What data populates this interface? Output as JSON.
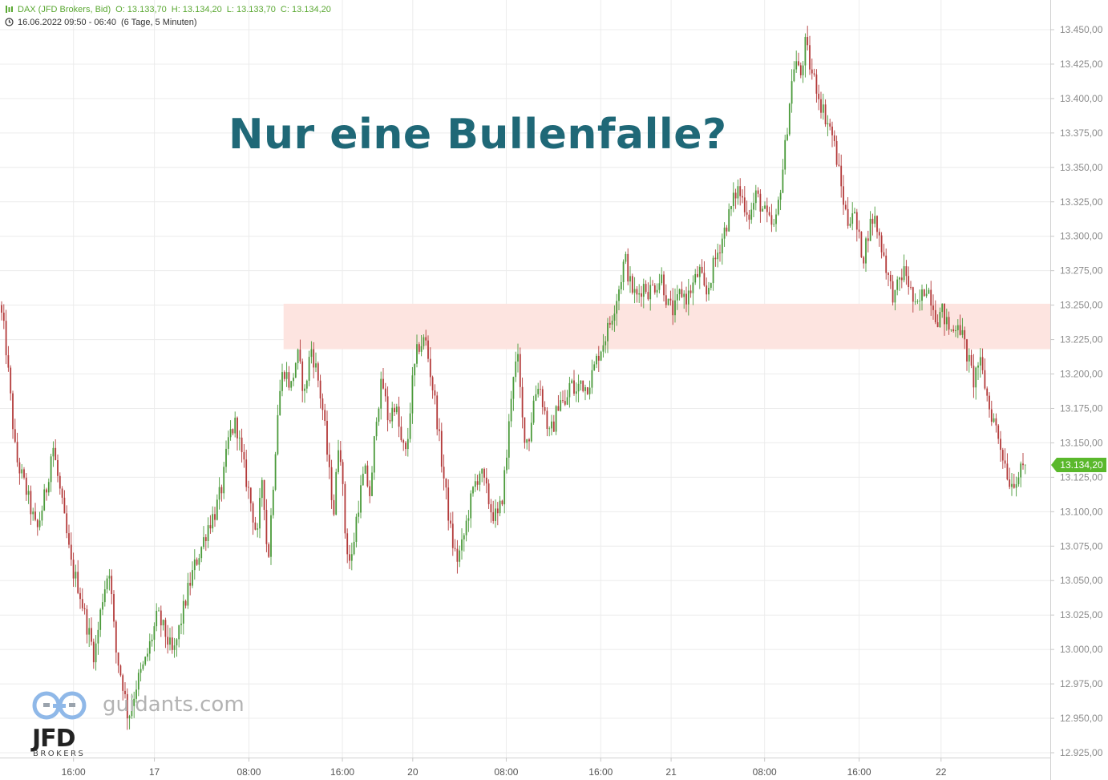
{
  "header": {
    "instrument": "DAX (JFD Brokers, Bid)",
    "open": "O: 13.133,70",
    "high": "H: 13.134,20",
    "low": "L: 13.133,70",
    "close": "C: 13.134,20",
    "range": "16.06.2022 09:50 - 06:40",
    "period": "(6 Tage, 5 Minuten)"
  },
  "overlay_title": "Nur eine Bullenfalle?",
  "watermark": {
    "site": "guidants.com",
    "brand": "JFD",
    "brand_sub": "BROKERS"
  },
  "last_price": "13.134,20",
  "colors": {
    "up": "#4a9a3a",
    "down": "#b33a3a",
    "zone": "#fde4e0",
    "title": "#1f6877",
    "price_tag": "#5ab82c"
  },
  "chart_data": {
    "type": "candlestick",
    "title": "",
    "timeframe": "5 Minuten",
    "ylim": [
      12915,
      13465
    ],
    "y_ticks": [
      "13.450,00",
      "13.425,00",
      "13.400,00",
      "13.375,00",
      "13.350,00",
      "13.325,00",
      "13.300,00",
      "13.275,00",
      "13.250,00",
      "13.225,00",
      "13.200,00",
      "13.175,00",
      "13.150,00",
      "13.125,00",
      "13.100,00",
      "13.075,00",
      "13.050,00",
      "13.025,00",
      "13.000,00",
      "12.975,00",
      "12.950,00",
      "12.925,00"
    ],
    "y_tick_values": [
      13450,
      13425,
      13400,
      13375,
      13350,
      13325,
      13300,
      13275,
      13250,
      13225,
      13200,
      13175,
      13150,
      13125,
      13100,
      13075,
      13050,
      13025,
      13000,
      12975,
      12950,
      12925
    ],
    "x_ticks": [
      {
        "label": "16:00",
        "pos": 0.07
      },
      {
        "label": "17",
        "pos": 0.147
      },
      {
        "label": "08:00",
        "pos": 0.237
      },
      {
        "label": "16:00",
        "pos": 0.326
      },
      {
        "label": "20",
        "pos": 0.393
      },
      {
        "label": "08:00",
        "pos": 0.482
      },
      {
        "label": "16:00",
        "pos": 0.572
      },
      {
        "label": "21",
        "pos": 0.639
      },
      {
        "label": "08:00",
        "pos": 0.728
      },
      {
        "label": "16:00",
        "pos": 0.818
      },
      {
        "label": "22",
        "pos": 0.896
      }
    ],
    "zone": {
      "from": 13218,
      "to": 13251,
      "start_pos": 0.27
    },
    "last_value": 13134.2,
    "path": [
      [
        0.0,
        13250
      ],
      [
        0.005,
        13225
      ],
      [
        0.015,
        13140
      ],
      [
        0.025,
        13115
      ],
      [
        0.035,
        13085
      ],
      [
        0.045,
        13120
      ],
      [
        0.05,
        13150
      ],
      [
        0.06,
        13100
      ],
      [
        0.068,
        13060
      ],
      [
        0.075,
        13045
      ],
      [
        0.082,
        13020
      ],
      [
        0.09,
        12995
      ],
      [
        0.098,
        13040
      ],
      [
        0.104,
        13060
      ],
      [
        0.11,
        13000
      ],
      [
        0.117,
        12975
      ],
      [
        0.122,
        12950
      ],
      [
        0.13,
        12975
      ],
      [
        0.138,
        12990
      ],
      [
        0.145,
        13010
      ],
      [
        0.15,
        13025
      ],
      [
        0.158,
        13010
      ],
      [
        0.165,
        12995
      ],
      [
        0.172,
        13020
      ],
      [
        0.178,
        13040
      ],
      [
        0.185,
        13060
      ],
      [
        0.192,
        13075
      ],
      [
        0.198,
        13090
      ],
      [
        0.205,
        13100
      ],
      [
        0.212,
        13120
      ],
      [
        0.218,
        13155
      ],
      [
        0.225,
        13165
      ],
      [
        0.23,
        13140
      ],
      [
        0.238,
        13110
      ],
      [
        0.245,
        13080
      ],
      [
        0.25,
        13130
      ],
      [
        0.255,
        13060
      ],
      [
        0.26,
        13120
      ],
      [
        0.265,
        13180
      ],
      [
        0.27,
        13205
      ],
      [
        0.277,
        13190
      ],
      [
        0.283,
        13215
      ],
      [
        0.29,
        13185
      ],
      [
        0.296,
        13220
      ],
      [
        0.302,
        13200
      ],
      [
        0.308,
        13170
      ],
      [
        0.313,
        13130
      ],
      [
        0.318,
        13100
      ],
      [
        0.323,
        13160
      ],
      [
        0.329,
        13080
      ],
      [
        0.334,
        13060
      ],
      [
        0.34,
        13100
      ],
      [
        0.347,
        13130
      ],
      [
        0.353,
        13110
      ],
      [
        0.358,
        13170
      ],
      [
        0.364,
        13195
      ],
      [
        0.37,
        13165
      ],
      [
        0.376,
        13180
      ],
      [
        0.382,
        13150
      ],
      [
        0.387,
        13140
      ],
      [
        0.392,
        13190
      ],
      [
        0.398,
        13220
      ],
      [
        0.405,
        13225
      ],
      [
        0.41,
        13200
      ],
      [
        0.415,
        13175
      ],
      [
        0.42,
        13140
      ],
      [
        0.425,
        13110
      ],
      [
        0.43,
        13080
      ],
      [
        0.435,
        13065
      ],
      [
        0.44,
        13075
      ],
      [
        0.446,
        13100
      ],
      [
        0.452,
        13120
      ],
      [
        0.457,
        13130
      ],
      [
        0.463,
        13115
      ],
      [
        0.468,
        13100
      ],
      [
        0.474,
        13095
      ],
      [
        0.478,
        13110
      ],
      [
        0.483,
        13145
      ],
      [
        0.488,
        13200
      ],
      [
        0.493,
        13210
      ],
      [
        0.498,
        13160
      ],
      [
        0.503,
        13150
      ],
      [
        0.508,
        13180
      ],
      [
        0.513,
        13195
      ],
      [
        0.518,
        13175
      ],
      [
        0.523,
        13155
      ],
      [
        0.528,
        13165
      ],
      [
        0.533,
        13185
      ],
      [
        0.538,
        13175
      ],
      [
        0.543,
        13195
      ],
      [
        0.548,
        13185
      ],
      [
        0.553,
        13195
      ],
      [
        0.558,
        13190
      ],
      [
        0.564,
        13200
      ],
      [
        0.57,
        13215
      ],
      [
        0.575,
        13225
      ],
      [
        0.58,
        13235
      ],
      [
        0.585,
        13250
      ],
      [
        0.59,
        13265
      ],
      [
        0.595,
        13285
      ],
      [
        0.6,
        13265
      ],
      [
        0.606,
        13255
      ],
      [
        0.612,
        13265
      ],
      [
        0.618,
        13260
      ],
      [
        0.624,
        13265
      ],
      [
        0.63,
        13270
      ],
      [
        0.636,
        13250
      ],
      [
        0.642,
        13245
      ],
      [
        0.648,
        13260
      ],
      [
        0.654,
        13255
      ],
      [
        0.66,
        13265
      ],
      [
        0.666,
        13275
      ],
      [
        0.672,
        13255
      ],
      [
        0.678,
        13275
      ],
      [
        0.684,
        13290
      ],
      [
        0.69,
        13305
      ],
      [
        0.696,
        13320
      ],
      [
        0.702,
        13335
      ],
      [
        0.708,
        13325
      ],
      [
        0.714,
        13315
      ],
      [
        0.72,
        13330
      ],
      [
        0.726,
        13320
      ],
      [
        0.732,
        13310
      ],
      [
        0.738,
        13305
      ],
      [
        0.742,
        13330
      ],
      [
        0.747,
        13360
      ],
      [
        0.752,
        13400
      ],
      [
        0.757,
        13430
      ],
      [
        0.762,
        13415
      ],
      [
        0.767,
        13440
      ],
      [
        0.772,
        13420
      ],
      [
        0.777,
        13410
      ],
      [
        0.782,
        13395
      ],
      [
        0.787,
        13385
      ],
      [
        0.792,
        13375
      ],
      [
        0.797,
        13355
      ],
      [
        0.802,
        13330
      ],
      [
        0.807,
        13310
      ],
      [
        0.812,
        13320
      ],
      [
        0.817,
        13300
      ],
      [
        0.822,
        13285
      ],
      [
        0.827,
        13305
      ],
      [
        0.832,
        13315
      ],
      [
        0.837,
        13300
      ],
      [
        0.842,
        13285
      ],
      [
        0.847,
        13265
      ],
      [
        0.852,
        13255
      ],
      [
        0.857,
        13270
      ],
      [
        0.862,
        13275
      ],
      [
        0.867,
        13260
      ],
      [
        0.872,
        13245
      ],
      [
        0.877,
        13255
      ],
      [
        0.882,
        13265
      ],
      [
        0.887,
        13255
      ],
      [
        0.892,
        13240
      ],
      [
        0.897,
        13245
      ],
      [
        0.902,
        13235
      ],
      [
        0.907,
        13230
      ],
      [
        0.912,
        13240
      ],
      [
        0.917,
        13225
      ],
      [
        0.922,
        13210
      ],
      [
        0.927,
        13195
      ],
      [
        0.932,
        13210
      ],
      [
        0.937,
        13195
      ],
      [
        0.942,
        13175
      ],
      [
        0.947,
        13165
      ],
      [
        0.952,
        13150
      ],
      [
        0.957,
        13135
      ],
      [
        0.962,
        13120
      ],
      [
        0.967,
        13125
      ],
      [
        0.972,
        13128
      ],
      [
        0.976,
        13134.2
      ]
    ]
  }
}
